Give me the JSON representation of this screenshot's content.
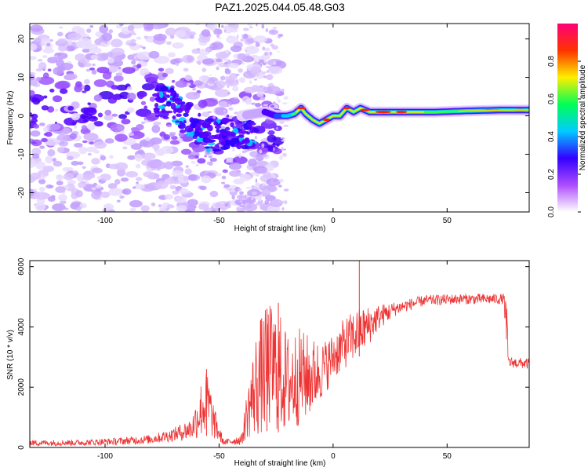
{
  "title": "PAZ1.2025.044.05.48.G03",
  "chart_data": [
    {
      "type": "heatmap",
      "xlabel": "Height of straight line (km)",
      "ylabel": "Frequency (Hz)",
      "xlim": [
        -133,
        86
      ],
      "ylim": [
        -25,
        24
      ],
      "xticks": [
        -100,
        -50,
        0,
        50
      ],
      "yticks": [
        -20,
        -10,
        0,
        10,
        20
      ],
      "colorbar": {
        "label": "Normalized spectral amplitude",
        "range": [
          0,
          1
        ],
        "ticks": [
          0.0,
          0.2,
          0.4,
          0.6,
          0.8
        ],
        "colors": [
          "#ffffff",
          "#ad4dff",
          "#3300ff",
          "#00ccff",
          "#00ff55",
          "#ffee00",
          "#ff3300",
          "#ff0077"
        ]
      },
      "ridge": [
        {
          "x": -40,
          "y": 0
        },
        {
          "x": -30,
          "y": 1
        },
        {
          "x": -25,
          "y": 0
        },
        {
          "x": -20,
          "y": 0
        },
        {
          "x": -17,
          "y": 0.5
        },
        {
          "x": -14,
          "y": 2
        },
        {
          "x": -12,
          "y": 0.5
        },
        {
          "x": -9,
          "y": -1
        },
        {
          "x": -6,
          "y": -2
        },
        {
          "x": -3,
          "y": -1
        },
        {
          "x": 0,
          "y": 0
        },
        {
          "x": 3,
          "y": 0
        },
        {
          "x": 6,
          "y": 2
        },
        {
          "x": 9,
          "y": 1
        },
        {
          "x": 12,
          "y": 2
        },
        {
          "x": 16,
          "y": 1
        },
        {
          "x": 22,
          "y": 1
        },
        {
          "x": 30,
          "y": 1
        },
        {
          "x": 45,
          "y": 1
        },
        {
          "x": 60,
          "y": 1.3
        },
        {
          "x": 75,
          "y": 1.5
        },
        {
          "x": 86,
          "y": 1.5
        }
      ],
      "scatter_trend": [
        {
          "x": -133,
          "y": 2
        },
        {
          "x": -100,
          "y": 3
        },
        {
          "x": -75,
          "y": 5
        },
        {
          "x": -65,
          "y": 0
        },
        {
          "x": -55,
          "y": -5
        },
        {
          "x": -45,
          "y": -5
        },
        {
          "x": -35,
          "y": -4
        }
      ]
    },
    {
      "type": "line",
      "xlabel": "Height of straight line (km)",
      "ylabel": "SNR (10 * v/v)",
      "xlim": [
        -133,
        86
      ],
      "ylim": [
        0,
        6200
      ],
      "xticks": [
        -100,
        -50,
        0,
        50
      ],
      "yticks": [
        0,
        2000,
        4000,
        6000
      ],
      "color": "#ee3333",
      "envelope": [
        {
          "x": -133,
          "lo": 50,
          "hi": 250
        },
        {
          "x": -110,
          "lo": 60,
          "hi": 260
        },
        {
          "x": -95,
          "lo": 80,
          "hi": 320
        },
        {
          "x": -80,
          "lo": 120,
          "hi": 420
        },
        {
          "x": -70,
          "lo": 200,
          "hi": 650
        },
        {
          "x": -62,
          "lo": 250,
          "hi": 1000
        },
        {
          "x": -58,
          "lo": 300,
          "hi": 2200
        },
        {
          "x": -55,
          "lo": 400,
          "hi": 2600
        },
        {
          "x": -52,
          "lo": 250,
          "hi": 1300
        },
        {
          "x": -48,
          "lo": 80,
          "hi": 250
        },
        {
          "x": -40,
          "lo": 80,
          "hi": 450
        },
        {
          "x": -38,
          "lo": 300,
          "hi": 1800
        },
        {
          "x": -33,
          "lo": 300,
          "hi": 4200
        },
        {
          "x": -28,
          "lo": 600,
          "hi": 4800
        },
        {
          "x": -24,
          "lo": 500,
          "hi": 4600
        },
        {
          "x": -20,
          "lo": 400,
          "hi": 3800
        },
        {
          "x": -15,
          "lo": 700,
          "hi": 4000
        },
        {
          "x": -10,
          "lo": 1000,
          "hi": 3700
        },
        {
          "x": -5,
          "lo": 1600,
          "hi": 3500
        },
        {
          "x": 0,
          "lo": 2200,
          "hi": 3800
        },
        {
          "x": 5,
          "lo": 2600,
          "hi": 4300
        },
        {
          "x": 10,
          "lo": 2900,
          "hi": 4600
        },
        {
          "x": 15,
          "lo": 3300,
          "hi": 4700
        },
        {
          "x": 20,
          "lo": 3900,
          "hi": 4750
        },
        {
          "x": 28,
          "lo": 4400,
          "hi": 4850
        },
        {
          "x": 40,
          "lo": 4700,
          "hi": 5050
        },
        {
          "x": 55,
          "lo": 4750,
          "hi": 5100
        },
        {
          "x": 75,
          "lo": 4750,
          "hi": 5100
        },
        {
          "x": 76,
          "lo": 2800,
          "hi": 5000
        },
        {
          "x": 77,
          "lo": 2650,
          "hi": 3000
        },
        {
          "x": 86,
          "lo": 2600,
          "hi": 2950
        }
      ],
      "spikes": [
        {
          "x": 11.5,
          "y": 6200
        },
        {
          "x": -24,
          "y": 4800
        },
        {
          "x": -29,
          "y": 4600
        },
        {
          "x": -55.5,
          "y": 2600
        }
      ]
    }
  ]
}
